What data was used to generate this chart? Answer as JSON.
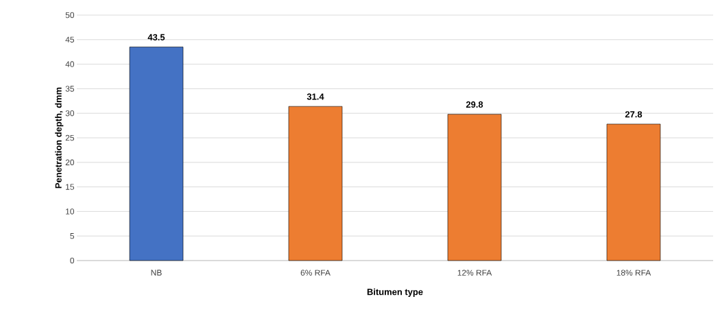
{
  "chart_data": {
    "type": "bar",
    "xlabel": "Bitumen type",
    "ylabel": "Penetration depth, dmm",
    "categories": [
      "NB",
      "6% RFA",
      "12% RFA",
      "18% RFA"
    ],
    "values": [
      43.5,
      31.4,
      29.8,
      27.8
    ],
    "colors": [
      "#4472c4",
      "#ed7d31",
      "#ed7d31",
      "#ed7d31"
    ],
    "ylim": [
      0,
      50
    ],
    "yticks": [
      0,
      5,
      10,
      15,
      20,
      25,
      30,
      35,
      40,
      45,
      50
    ],
    "grid": "y",
    "data_labels": true
  }
}
